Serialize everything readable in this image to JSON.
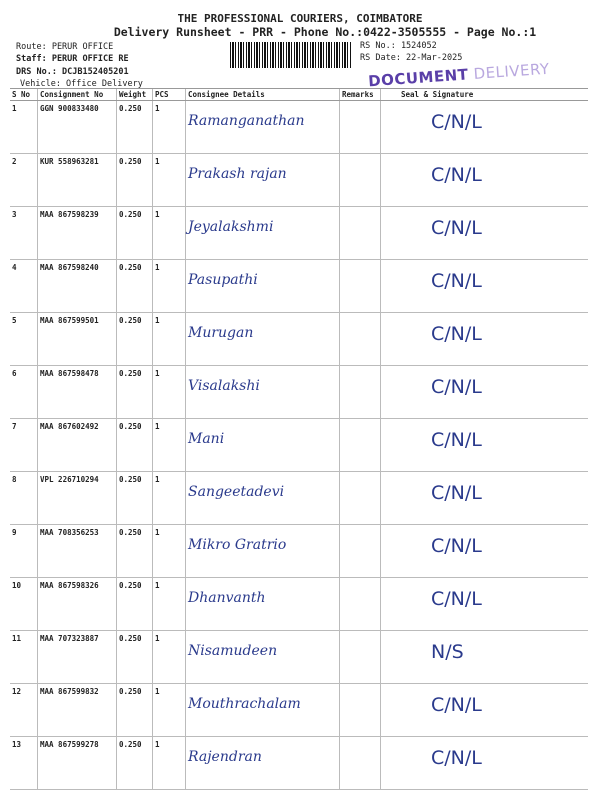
{
  "header": {
    "company": "THE PROFESSIONAL COURIERS, COIMBATORE",
    "subtitle": "Delivery Runsheet - PRR - Phone No.:0422-3505555 - Page No.:1",
    "route": "Route: PERUR OFFICE",
    "staff": "Staff: PERUR OFFICE  RE",
    "drs_no": "DRS No.: DCJB152405201",
    "vehicle": "Vehicle: Office Delivery",
    "rs_no": "RS No.: 1524052",
    "rs_date": "RS Date: 22-Mar-2025",
    "stamp_main": "DOCUMENT",
    "stamp_faded": " DELIVERY"
  },
  "table": {
    "columns": [
      "S No",
      "Consignment No",
      "Weight",
      "PCS",
      "Consignee Details",
      "Remarks",
      "Seal & Signature"
    ],
    "rows": [
      {
        "sno": "1",
        "cn": "GGN 900833480",
        "wt": "0.250",
        "pcs": "1",
        "name": "Ramanganathan",
        "sig": "C/N/L"
      },
      {
        "sno": "2",
        "cn": "KUR 558963281",
        "wt": "0.250",
        "pcs": "1",
        "name": "Prakash rajan",
        "sig": "C/N/L"
      },
      {
        "sno": "3",
        "cn": "MAA 867598239",
        "wt": "0.250",
        "pcs": "1",
        "name": "Jeyalakshmi",
        "sig": "C/N/L"
      },
      {
        "sno": "4",
        "cn": "MAA 867598240",
        "wt": "0.250",
        "pcs": "1",
        "name": "Pasupathi",
        "sig": "C/N/L"
      },
      {
        "sno": "5",
        "cn": "MAA 867599501",
        "wt": "0.250",
        "pcs": "1",
        "name": "Murugan",
        "sig": "C/N/L"
      },
      {
        "sno": "6",
        "cn": "MAA 867598478",
        "wt": "0.250",
        "pcs": "1",
        "name": "Visalakshi",
        "sig": "C/N/L"
      },
      {
        "sno": "7",
        "cn": "MAA 867602492",
        "wt": "0.250",
        "pcs": "1",
        "name": "Mani",
        "sig": "C/N/L"
      },
      {
        "sno": "8",
        "cn": "VPL 226710294",
        "wt": "0.250",
        "pcs": "1",
        "name": "Sangeetadevi",
        "sig": "C/N/L"
      },
      {
        "sno": "9",
        "cn": "MAA 708356253",
        "wt": "0.250",
        "pcs": "1",
        "name": "Mikro Gratrio",
        "sig": "C/N/L"
      },
      {
        "sno": "10",
        "cn": "MAA 867598326",
        "wt": "0.250",
        "pcs": "1",
        "name": "Dhanvanth",
        "sig": "C/N/L"
      },
      {
        "sno": "11",
        "cn": "MAA 707323887",
        "wt": "0.250",
        "pcs": "1",
        "name": "Nisamudeen",
        "sig": "N/S"
      },
      {
        "sno": "12",
        "cn": "MAA 867599832",
        "wt": "0.250",
        "pcs": "1",
        "name": "Mouthrachalam",
        "sig": "C/N/L"
      },
      {
        "sno": "13",
        "cn": "MAA 867599278",
        "wt": "0.250",
        "pcs": "1",
        "name": "Rajendran",
        "sig": "C/N/L"
      }
    ]
  },
  "colors": {
    "ink": "#2a3a8c",
    "stamp": "#5a3fa8"
  }
}
